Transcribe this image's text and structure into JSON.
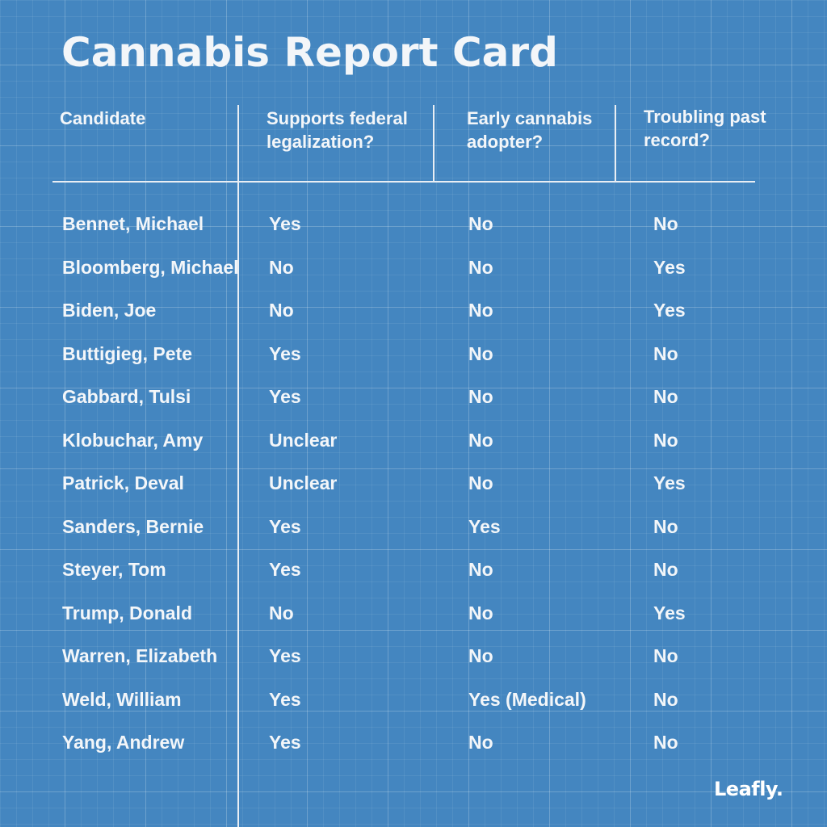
{
  "title": "Cannabis Report Card",
  "colors": {
    "background": "#4486c0",
    "text": "#f3f6f9",
    "lines": "#e9eef4"
  },
  "table": {
    "headers": {
      "candidate": "Candidate",
      "federal_line1": "Supports federal",
      "federal_line2": "legalization?",
      "early_line1": "Early cannabis",
      "early_line2": "adopter?",
      "troubling_line1": "Troubling past",
      "troubling_line2": "record?"
    },
    "rows": [
      {
        "name": "Bennet, Michael",
        "federal": "Yes",
        "early": "No",
        "troubling": "No"
      },
      {
        "name": "Bloomberg, Michael",
        "federal": "No",
        "early": "No",
        "troubling": "Yes"
      },
      {
        "name": "Biden, Joe",
        "federal": "No",
        "early": "No",
        "troubling": "Yes"
      },
      {
        "name": "Buttigieg, Pete",
        "federal": "Yes",
        "early": "No",
        "troubling": "No"
      },
      {
        "name": "Gabbard, Tulsi",
        "federal": "Yes",
        "early": "No",
        "troubling": "No"
      },
      {
        "name": "Klobuchar, Amy",
        "federal": "Unclear",
        "early": "No",
        "troubling": "No"
      },
      {
        "name": "Patrick, Deval",
        "federal": "Unclear",
        "early": "No",
        "troubling": "Yes"
      },
      {
        "name": "Sanders, Bernie",
        "federal": "Yes",
        "early": "Yes",
        "troubling": "No"
      },
      {
        "name": "Steyer, Tom",
        "federal": "Yes",
        "early": "No",
        "troubling": "No"
      },
      {
        "name": "Trump, Donald",
        "federal": "No",
        "early": "No",
        "troubling": "Yes"
      },
      {
        "name": "Warren, Elizabeth",
        "federal": "Yes",
        "early": "No",
        "troubling": "No"
      },
      {
        "name": "Weld, William",
        "federal": "Yes",
        "early": "Yes (Medical)",
        "troubling": "No"
      },
      {
        "name": "Yang, Andrew",
        "federal": "Yes",
        "early": "No",
        "troubling": "No"
      }
    ]
  },
  "brand": "Leafly."
}
